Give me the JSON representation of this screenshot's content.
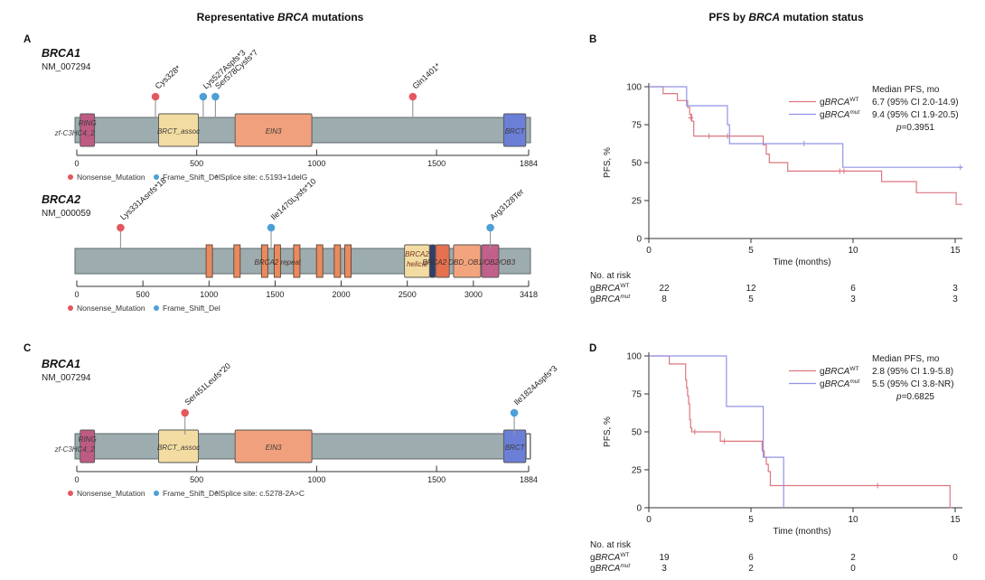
{
  "titles": {
    "left": {
      "pre": "Representative ",
      "em": "BRCA",
      "post": " mutations"
    },
    "right": {
      "pre": "PFS by ",
      "em": "BRCA",
      "post": " mutation status"
    }
  },
  "panels": {
    "a": "A",
    "b": "B",
    "c": "C",
    "d": "D"
  },
  "gene_blocks": {
    "brca1_a": {
      "name": "BRCA1",
      "transcript": "NM_007294"
    },
    "brca2_a": {
      "name": "BRCA2",
      "transcript": "NM_000059"
    },
    "brca1_c": {
      "name": "BRCA1",
      "transcript": "NM_007294"
    }
  },
  "colors": {
    "km_wt": "#DD7680",
    "km_mut": "#9193E8",
    "nonsense_dot": "#E4575F",
    "frameshift_dot": "#4D9FD6",
    "backbone": "#9DACAE"
  },
  "chart_data": [
    {
      "id": "A1",
      "panel": "A",
      "type": "lollipop",
      "gene": "BRCA1",
      "transcript": "NM_007294",
      "length": 1884,
      "axis_ticks": [
        0,
        500,
        1000,
        1500,
        1884
      ],
      "domains": [
        {
          "label": "RING",
          "label2": "zf-C3HC4_2",
          "label2_dx": -14,
          "start": 14,
          "end": 74,
          "color": "#BE5B82"
        },
        {
          "label": "BRCT_assoc",
          "start": 341,
          "end": 507,
          "color": "#F3DCA2"
        },
        {
          "label": "EIN3",
          "start": 660,
          "end": 980,
          "color": "#F0A07C"
        },
        {
          "label": "BRCT",
          "start": 1780,
          "end": 1872,
          "color": "#6B7FD7"
        }
      ],
      "mutations": [
        {
          "label": "Cys328*",
          "pos": 328,
          "type": "Nonsense_Mutation"
        },
        {
          "label": "Lys527Aspfs*3",
          "pos": 527,
          "type": "Frame_Shift_Del"
        },
        {
          "label": "Ser578Cysfs*7",
          "pos": 578,
          "type": "Frame_Shift_Del"
        },
        {
          "label": "Gln1401*",
          "pos": 1401,
          "type": "Nonsense_Mutation"
        }
      ],
      "legend": [
        {
          "label": "Nonsense_Mutation",
          "color": "#E4575F"
        },
        {
          "label": "Frame_Shift_Del",
          "color": "#4D9FD6"
        }
      ],
      "note": "* Splice site: c.5193+1delG"
    },
    {
      "id": "A2",
      "panel": "A",
      "type": "lollipop",
      "gene": "BRCA2",
      "transcript": "NM_000059",
      "length": 3418,
      "axis_ticks": [
        0,
        500,
        1000,
        1500,
        2000,
        2500,
        3000,
        3418
      ],
      "repeats": [
        1002,
        1212,
        1421,
        1517,
        1664,
        1837,
        1971,
        2051
      ],
      "domains": [
        {
          "label": "BRCA2",
          "label2": "helical",
          "label2_dx": 0,
          "start": 2479,
          "end": 2668,
          "color": "#F3DCA2",
          "text_color": "#7A3525"
        },
        {
          "label": "",
          "start": 2670,
          "end": 2712,
          "color": "#2F3E6A"
        },
        {
          "label": "",
          "start": 2715,
          "end": 2818,
          "color": "#E5714F"
        },
        {
          "label": "",
          "start": 2850,
          "end": 3055,
          "color": "#F2A47F"
        },
        {
          "label": "",
          "start": 3062,
          "end": 3192,
          "color": "#C2608C"
        }
      ],
      "bar_labels": [
        {
          "text": "BRCA2 repeat",
          "pos": 1520
        },
        {
          "text": "BRCA2 DBD_OB1/OB2/OB3",
          "pos": 2965
        }
      ],
      "mutations": [
        {
          "label": "Lys331Asnfs*18",
          "pos": 331,
          "type": "Nonsense_Mutation"
        },
        {
          "label": "Ile1470Lysfs*10",
          "pos": 1470,
          "type": "Frame_Shift_Del"
        },
        {
          "label": "Arg3128Ter",
          "pos": 3128,
          "type": "Frame_Shift_Del"
        }
      ],
      "legend": [
        {
          "label": "Nonsense_Mutation",
          "color": "#E4575F"
        },
        {
          "label": "Frame_Shift_Del",
          "color": "#4D9FD6"
        }
      ],
      "note": ""
    },
    {
      "id": "C1",
      "panel": "C",
      "type": "lollipop",
      "gene": "BRCA1",
      "transcript": "NM_007294",
      "length": 1884,
      "endcap": true,
      "axis_ticks": [
        0,
        500,
        1000,
        1500,
        1884
      ],
      "domains": [
        {
          "label": "RING",
          "label2": "zf-C3HC4_2",
          "label2_dx": -14,
          "start": 14,
          "end": 74,
          "color": "#BE5B82"
        },
        {
          "label": "BRCT_assoc",
          "start": 341,
          "end": 507,
          "color": "#F3DCA2"
        },
        {
          "label": "EIN3",
          "start": 660,
          "end": 980,
          "color": "#F0A07C"
        },
        {
          "label": "BRCT",
          "start": 1780,
          "end": 1872,
          "color": "#6B7FD7"
        }
      ],
      "mutations": [
        {
          "label": "Ser451Leufs*20",
          "pos": 451,
          "type": "Nonsense_Mutation"
        },
        {
          "label": "Ile1824Aspfs*3",
          "pos": 1824,
          "type": "Frame_Shift_Del"
        }
      ],
      "legend": [
        {
          "label": "Nonsense_Mutation",
          "color": "#E4575F"
        },
        {
          "label": "Frame_Shift_Del",
          "color": "#4D9FD6"
        }
      ],
      "note": "* Splice site: c.5278-2A>C"
    },
    {
      "id": "B",
      "panel": "B",
      "type": "km",
      "ylabel": "PFS, %",
      "xlabel": "Time (months)",
      "yticks": [
        0,
        25,
        50,
        75,
        100
      ],
      "xticks": [
        0,
        5,
        10,
        15
      ],
      "xlim": [
        0,
        15
      ],
      "ylim": [
        0,
        100
      ],
      "legend_header": "Median PFS, mo",
      "p_text": "p=0.3951",
      "series": [
        {
          "prefix": "g",
          "gene": "BRCA",
          "sup": "WT",
          "color": "#DD7680",
          "median": "6.7 (95% CI 2.0-14.9)",
          "points": [
            [
              0.7,
              95.5
            ],
            [
              1.4,
              90.9
            ],
            [
              1.9,
              86.4
            ],
            [
              2.0,
              81.8
            ],
            [
              2.1,
              77.3
            ],
            [
              2.2,
              67.5
            ],
            [
              5.6,
              61.7
            ],
            [
              5.75,
              55.6
            ],
            [
              5.9,
              50
            ],
            [
              6.8,
              44.4
            ],
            [
              11.4,
              37.5
            ],
            [
              13.1,
              30.2
            ],
            [
              15.05,
              22.5
            ]
          ],
          "end": 15.35,
          "censors": [
            [
              2.05,
              79.5
            ],
            [
              2.95,
              67.5
            ],
            [
              3.85,
              67.5
            ],
            [
              9.35,
              44.4
            ],
            [
              9.55,
              44.4
            ]
          ]
        },
        {
          "prefix": "g",
          "gene": "BRCA",
          "sup": "mut",
          "color": "#9193E8",
          "median": "9.4 (95% CI 1.9-20.5)",
          "points": [
            [
              1.85,
              87.5
            ],
            [
              3.85,
              75
            ],
            [
              3.95,
              62.5
            ],
            [
              9.5,
              46.9
            ]
          ],
          "end": 15.35,
          "censors": [
            [
              7.6,
              62.5
            ],
            [
              15.25,
              46.9
            ]
          ]
        }
      ],
      "risk": {
        "header": "No. at risk",
        "times": [
          0,
          5,
          10,
          15
        ],
        "rows": [
          {
            "prefix": "g",
            "gene": "BRCA",
            "sup": "WT",
            "values": [
              "22",
              "12",
              "6",
              "3"
            ]
          },
          {
            "prefix": "g",
            "gene": "BRCA",
            "sup": "mut",
            "values": [
              "8",
              "5",
              "3",
              "3"
            ]
          }
        ]
      }
    },
    {
      "id": "D",
      "panel": "D",
      "type": "km",
      "ylabel": "PFS, %",
      "xlabel": "Time (months)",
      "yticks": [
        0,
        25,
        50,
        75,
        100
      ],
      "xticks": [
        0,
        5,
        10,
        15
      ],
      "xlim": [
        0,
        15
      ],
      "ylim": [
        0,
        100
      ],
      "legend_header": "Median PFS, mo",
      "p_text": "p=0.6825",
      "series": [
        {
          "prefix": "g",
          "gene": "BRCA",
          "sup": "WT",
          "color": "#DD7680",
          "median": "2.8 (95% CI 1.9-5.8)",
          "points": [
            [
              1.0,
              94.7
            ],
            [
              1.8,
              84.2
            ],
            [
              1.85,
              78.9
            ],
            [
              1.9,
              73.7
            ],
            [
              1.95,
              68.4
            ],
            [
              2.0,
              57.9
            ],
            [
              2.05,
              52.6
            ],
            [
              2.1,
              50
            ],
            [
              3.5,
              43.8
            ],
            [
              5.55,
              37.5
            ],
            [
              5.65,
              33.3
            ],
            [
              5.75,
              28.6
            ],
            [
              5.85,
              23.8
            ],
            [
              5.95,
              14.6
            ],
            [
              14.75,
              0
            ]
          ],
          "end": 14.8,
          "censors": [
            [
              2.25,
              50
            ],
            [
              3.7,
              43.8
            ],
            [
              11.2,
              14.6
            ]
          ]
        },
        {
          "prefix": "g",
          "gene": "BRCA",
          "sup": "mut",
          "color": "#9193E8",
          "median": "5.5 (95% CI 3.8-NR)",
          "points": [
            [
              3.8,
              66.7
            ],
            [
              5.6,
              33.3
            ],
            [
              6.6,
              0
            ]
          ],
          "end": 6.6,
          "censors": []
        }
      ],
      "risk": {
        "header": "No. at risk",
        "times": [
          0,
          5,
          10,
          15
        ],
        "rows": [
          {
            "prefix": "g",
            "gene": "BRCA",
            "sup": "WT",
            "values": [
              "19",
              "6",
              "2",
              "0"
            ]
          },
          {
            "prefix": "g",
            "gene": "BRCA",
            "sup": "mut",
            "values": [
              "3",
              "2",
              "0",
              ""
            ]
          }
        ]
      }
    }
  ]
}
